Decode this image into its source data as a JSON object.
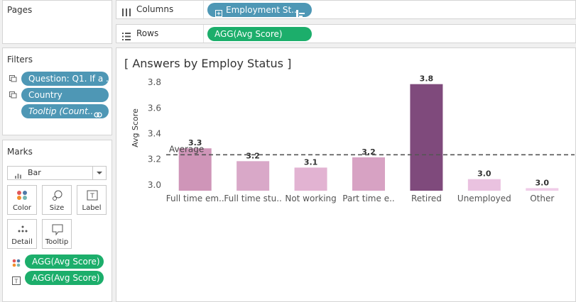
{
  "pages": {
    "title": "Pages"
  },
  "columns_shelf": {
    "label": "Columns",
    "pill": "Employment St.."
  },
  "rows_shelf": {
    "label": "Rows",
    "pill": "AGG(Avg Score)"
  },
  "filters": {
    "title": "Filters",
    "items": [
      {
        "label": "Question: Q1. If a ..",
        "icon": "filter-icon"
      },
      {
        "label": "Country",
        "icon": "filter-icon"
      },
      {
        "label": "Tooltip (Count..",
        "icon": "link-icon"
      }
    ]
  },
  "marks": {
    "title": "Marks",
    "mark_type": "Bar",
    "cards": [
      {
        "label": "Color",
        "icon": "color-dots-icon"
      },
      {
        "label": "Size",
        "icon": "size-icon"
      },
      {
        "label": "Label",
        "icon": "label-icon"
      },
      {
        "label": "Detail",
        "icon": "detail-icon"
      },
      {
        "label": "Tooltip",
        "icon": "tooltip-icon"
      }
    ],
    "assigned": [
      {
        "label": "AGG(Avg Score)",
        "icon": "color-dots-icon"
      },
      {
        "label": "AGG(Avg Score)",
        "icon": "label-icon"
      }
    ]
  },
  "sheet": {
    "title": "[ Answers by Employ Status ]"
  },
  "chart_data": {
    "type": "bar",
    "title": "[ Answers by Employ Status ]",
    "ylabel": "Avg Score",
    "xlabel": "",
    "categories": [
      "Full time em..",
      "Full time stu..",
      "Not working",
      "Part time e..",
      "Retired",
      "Unemployed",
      "Other"
    ],
    "values": [
      3.28,
      3.18,
      3.13,
      3.21,
      3.78,
      3.04,
      2.97
    ],
    "value_labels": [
      "3.3",
      "3.2",
      "3.1",
      "3.2",
      "3.8",
      "3.0",
      "3.0"
    ],
    "bar_colors": [
      "#cf95b8",
      "#d9a8c8",
      "#e2b3d2",
      "#d7a2c3",
      "#7f4a7c",
      "#eac2e0",
      "#f0cde8"
    ],
    "ylim": [
      2.95,
      3.85
    ],
    "yticks": [
      "3.0",
      "3.2",
      "3.4",
      "3.6",
      "3.8"
    ],
    "reference_line": {
      "label": "Average",
      "value": 3.23
    },
    "grid": false
  }
}
